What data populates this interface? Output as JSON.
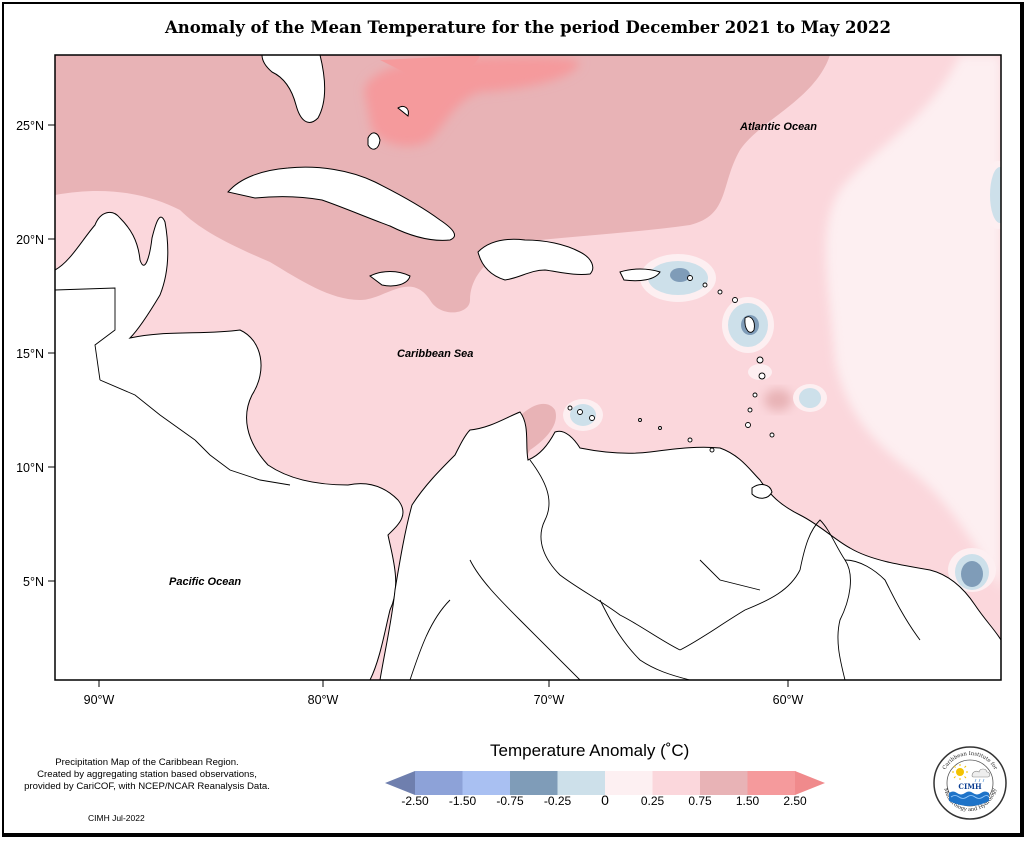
{
  "title": "Anomaly of the Mean Temperature for the period December 2021 to May 2022",
  "lat_labels": [
    "25°N",
    "20°N",
    "15°N",
    "10°N",
    "5°N"
  ],
  "lon_labels": [
    "90°W",
    "80°W",
    "70°W",
    "60°W"
  ],
  "regions": {
    "atlantic": "Atlantic Ocean",
    "caribbean": "Caribbean Sea",
    "pacific": "Pacific Ocean"
  },
  "credit": {
    "line1": "Precipitation Map of the Caribbean Region.",
    "line2": "Created by aggregating station based observations,",
    "line3": "provided by CariCOF, with NCEP/NCAR Reanalysis Data.",
    "date": "CIMH Jul-2022"
  },
  "legend": {
    "title": "Temperature Anomaly (˚C)",
    "ticks": [
      "-2.50",
      "-1.50",
      "-0.75",
      "-0.25",
      "0",
      "0.25",
      "0.75",
      "1.50",
      "2.50"
    ],
    "colors": [
      "#6f7fae",
      "#8da2d8",
      "#a9c0f2",
      "#7f9cb8",
      "#cde0ea",
      "#fdf0f2",
      "#fbd7dc",
      "#e8b3b6",
      "#f59a9c",
      "#f08a8c"
    ]
  },
  "logo": {
    "top_text": "Caribbean Institute for",
    "bottom_text": "Meteorology and Hydrology",
    "acronym": "CIMH"
  }
}
